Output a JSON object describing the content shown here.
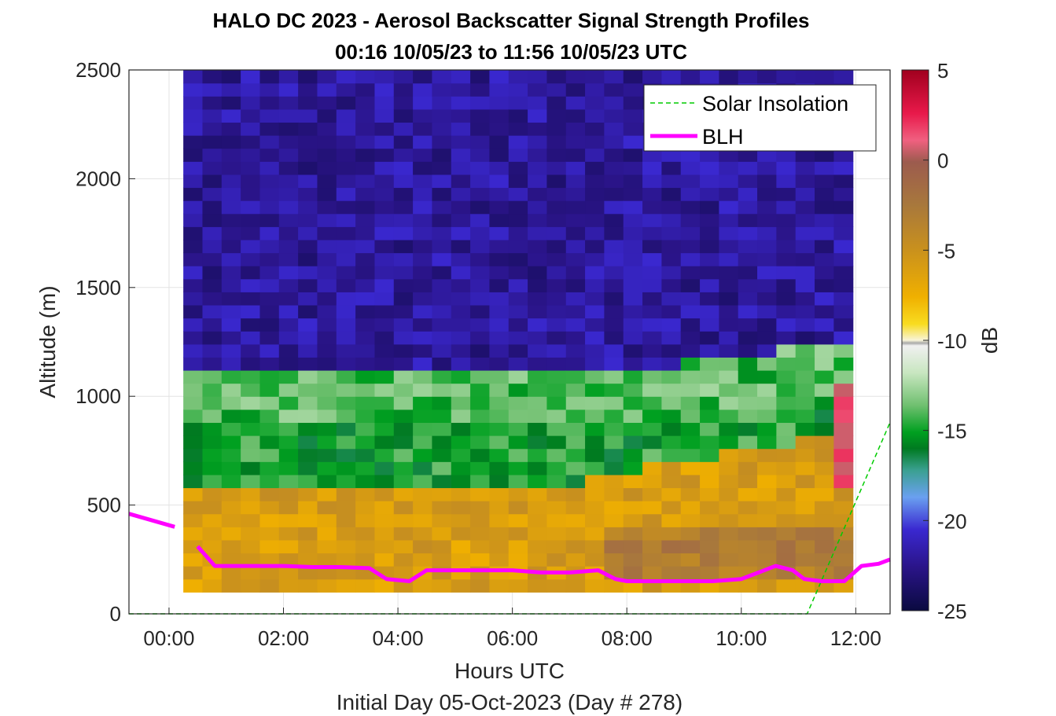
{
  "chart_data": {
    "type": "heatmap",
    "title": "HALO DC 2023 - Aerosol Backscatter Signal Strength Profiles",
    "subtitle": "00:16 10/05/23 to 11:56 10/05/23  UTC",
    "xlabel": "Hours UTC",
    "xlabel2": "Initial Day 05-Oct-2023 (Day # 278)",
    "ylabel": "Altitude (m)",
    "colorbar_label": "dB",
    "xlim": [
      -0.7,
      12.6
    ],
    "ylim": [
      0,
      2500
    ],
    "clim": [
      -25,
      5
    ],
    "grid": true,
    "legend_position": "top-right",
    "x_ticks": [
      {
        "value": 0,
        "label": "00:00"
      },
      {
        "value": 2,
        "label": "02:00"
      },
      {
        "value": 4,
        "label": "04:00"
      },
      {
        "value": 6,
        "label": "06:00"
      },
      {
        "value": 8,
        "label": "08:00"
      },
      {
        "value": 10,
        "label": "10:00"
      },
      {
        "value": 12,
        "label": "12:00"
      }
    ],
    "y_ticks": [
      {
        "value": 0,
        "label": "0"
      },
      {
        "value": 500,
        "label": "500"
      },
      {
        "value": 1000,
        "label": "1000"
      },
      {
        "value": 1500,
        "label": "1500"
      },
      {
        "value": 2000,
        "label": "2000"
      },
      {
        "value": 2500,
        "label": "2500"
      }
    ],
    "colorbar_ticks": [
      {
        "value": 5,
        "label": "5"
      },
      {
        "value": 0,
        "label": "0"
      },
      {
        "value": -5,
        "label": "-5"
      },
      {
        "value": -10,
        "label": "-10"
      },
      {
        "value": -15,
        "label": "-15"
      },
      {
        "value": -20,
        "label": "-20"
      },
      {
        "value": -25,
        "label": "-25"
      }
    ],
    "heatmap": {
      "time_start": 0.25,
      "time_end": 11.95,
      "alt_start": 100,
      "alt_end": 2500,
      "approx_values_db": {
        "above_1100m": -22,
        "mid_layer_600_1000m_early": -15,
        "mid_layer_900_1100m_late": -14,
        "boundary_layer_below_600m": -6,
        "near_surface_late_150_400m": -3,
        "top_layer_11_8h_600_1000m": 1
      }
    },
    "series": [
      {
        "name": "Solar Insolation",
        "style": "dashed",
        "color": "#00cc00",
        "points": [
          [
            -0.7,
            0
          ],
          [
            11.15,
            0
          ],
          [
            12.6,
            880
          ]
        ]
      },
      {
        "name": "BLH",
        "style": "solid",
        "color": "#ff00ff",
        "segments": [
          [
            [
              -0.7,
              460
            ],
            [
              0.1,
              400
            ]
          ],
          [
            [
              0.5,
              310
            ],
            [
              0.8,
              220
            ],
            [
              1.5,
              220
            ],
            [
              2.0,
              220
            ],
            [
              2.5,
              215
            ],
            [
              3.0,
              215
            ],
            [
              3.5,
              210
            ],
            [
              3.8,
              160
            ],
            [
              4.2,
              150
            ],
            [
              4.5,
              200
            ],
            [
              5.0,
              200
            ],
            [
              5.5,
              200
            ],
            [
              6.0,
              200
            ],
            [
              6.5,
              190
            ],
            [
              7.0,
              190
            ],
            [
              7.5,
              200
            ],
            [
              7.8,
              160
            ],
            [
              8.0,
              150
            ],
            [
              8.5,
              150
            ],
            [
              9.0,
              150
            ],
            [
              9.5,
              150
            ],
            [
              10.0,
              160
            ],
            [
              10.3,
              190
            ],
            [
              10.6,
              220
            ],
            [
              10.9,
              200
            ],
            [
              11.1,
              160
            ],
            [
              11.4,
              150
            ],
            [
              11.8,
              150
            ],
            [
              12.1,
              220
            ],
            [
              12.4,
              230
            ],
            [
              12.6,
              250
            ]
          ]
        ]
      }
    ],
    "legend": [
      {
        "label": "Solar Insolation",
        "color": "#00cc00",
        "style": "dashed"
      },
      {
        "label": "BLH",
        "color": "#ff00ff",
        "style": "solid"
      }
    ]
  }
}
